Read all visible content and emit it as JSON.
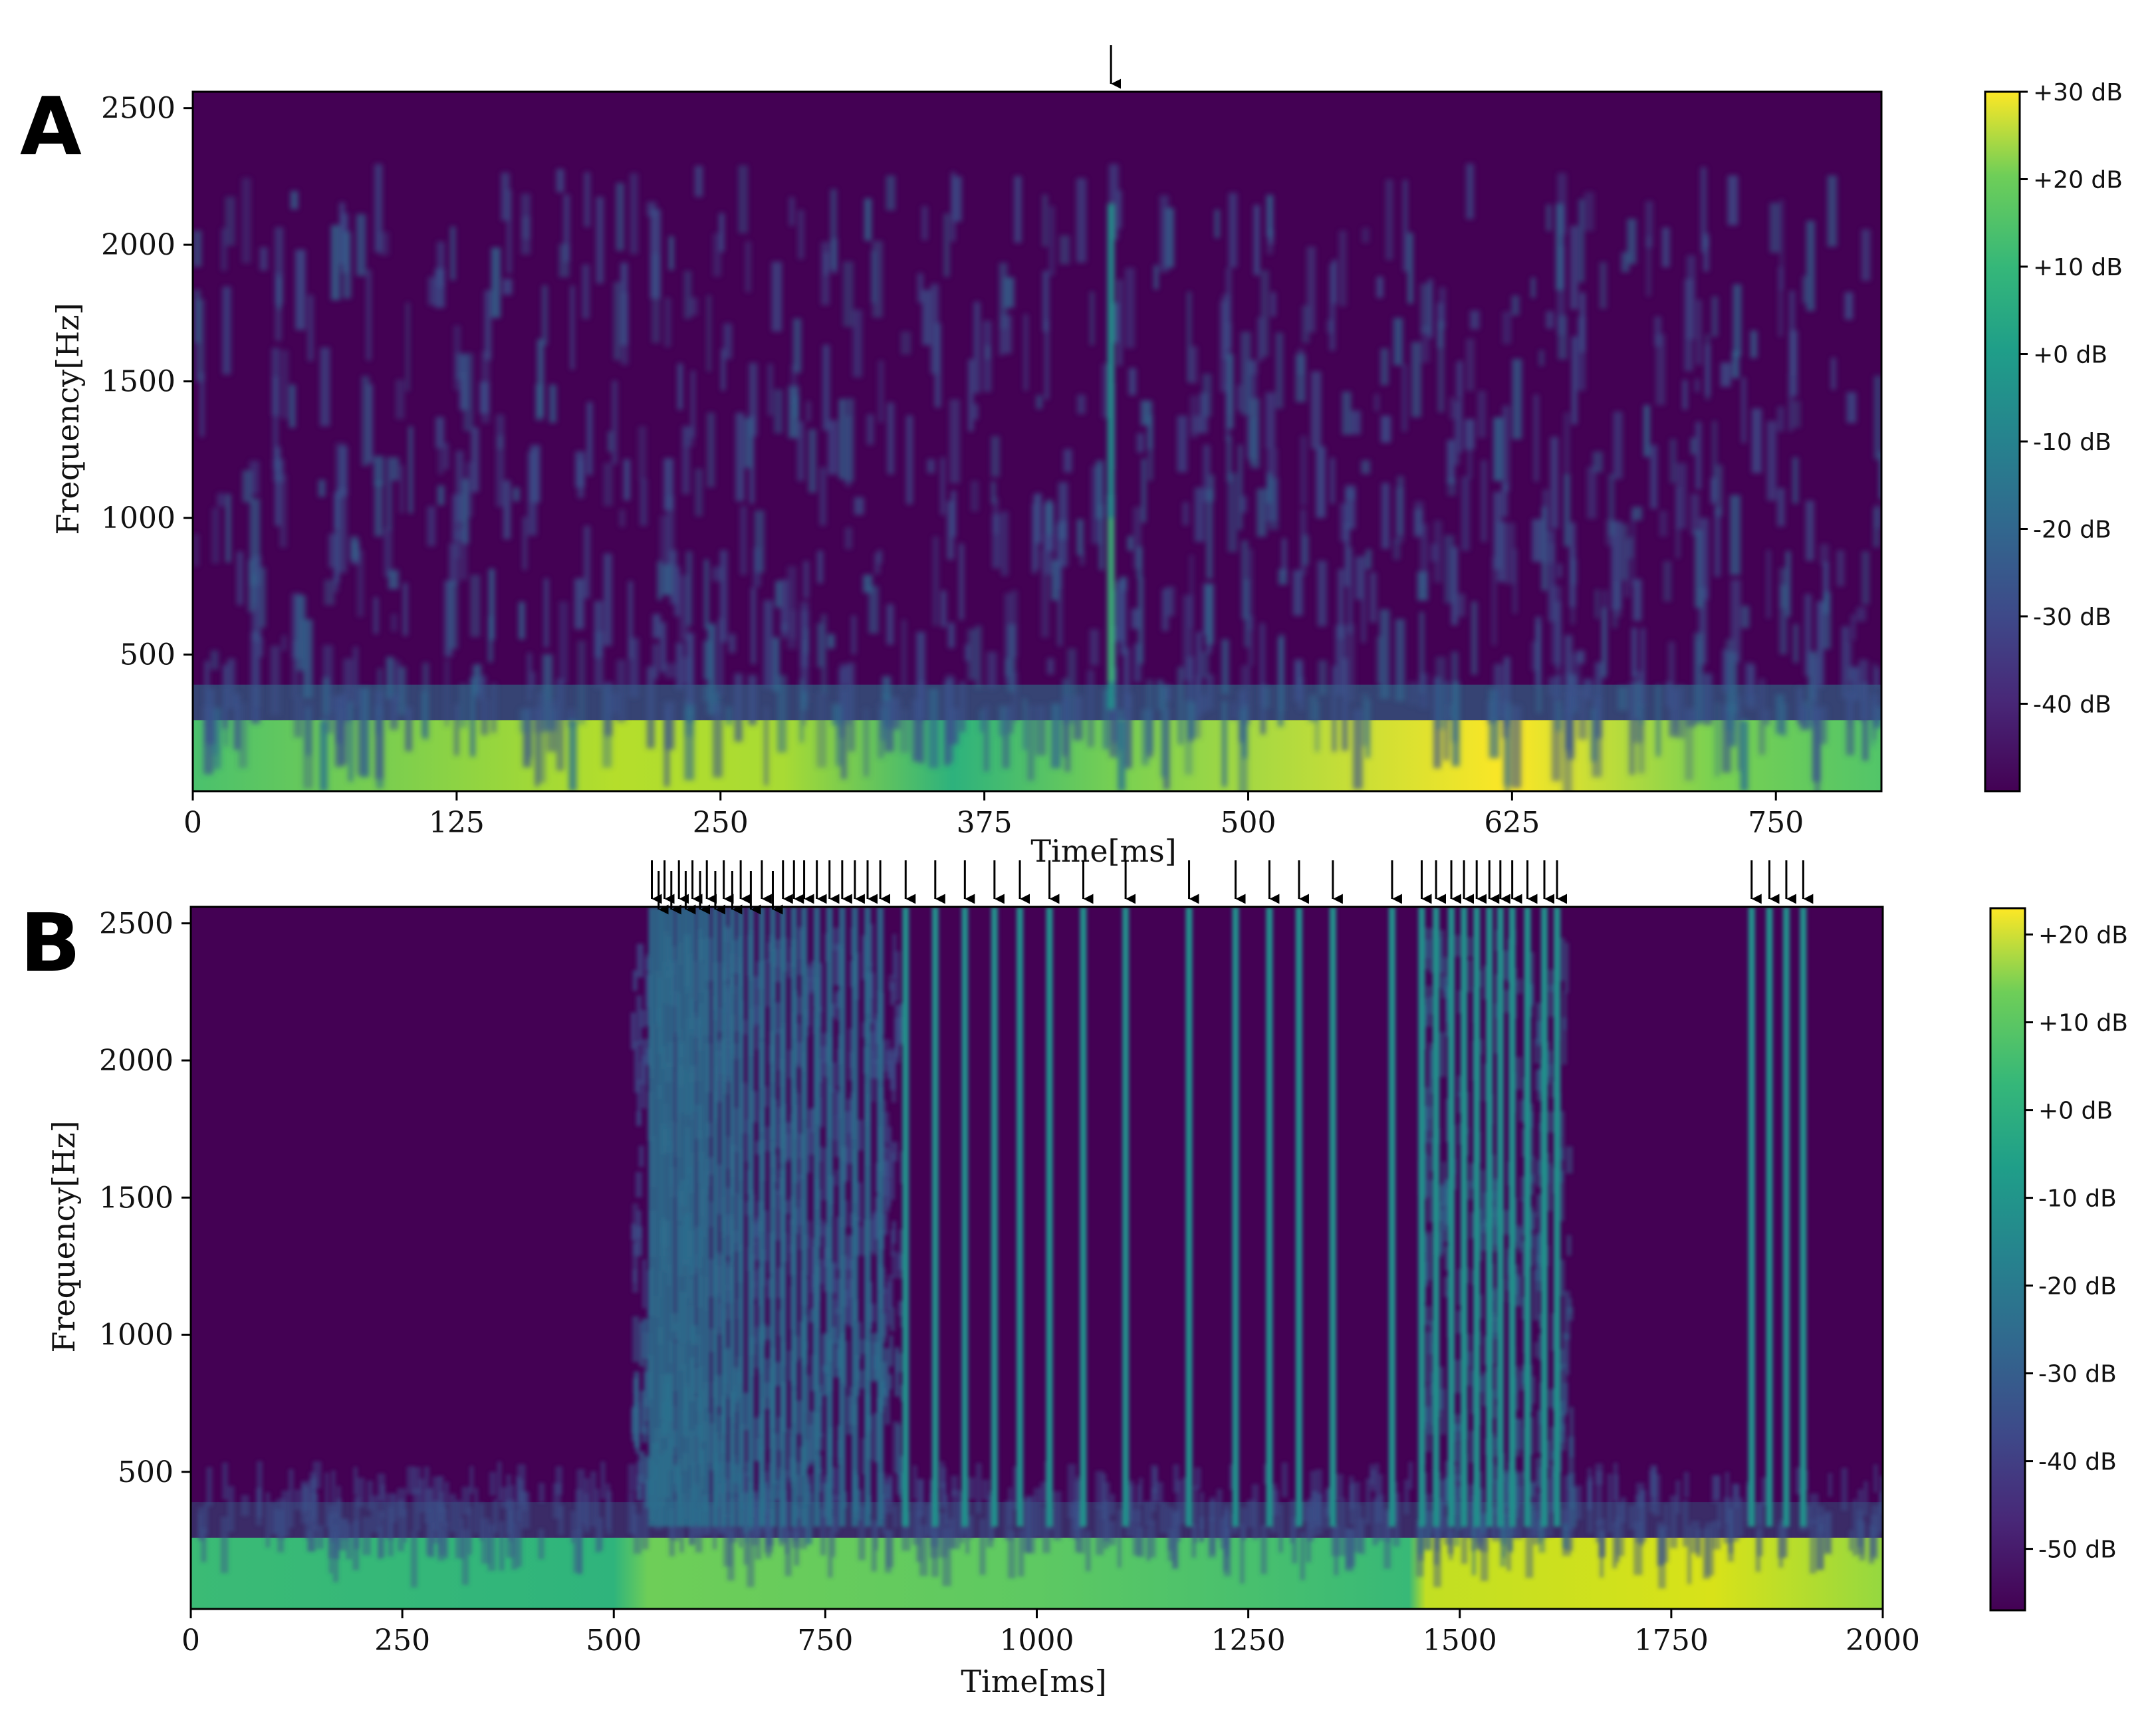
{
  "chart_data": [
    {
      "type": "heatmap",
      "panel_label": "A",
      "xlabel": "Time[ms]",
      "ylabel": "Frequency[Hz]",
      "xlim": [
        0,
        800
      ],
      "ylim": [
        0,
        2500
      ],
      "x_ticks": [
        0,
        125,
        250,
        375,
        500,
        625,
        750
      ],
      "y_ticks": [
        500,
        1000,
        1500,
        2000,
        2500
      ],
      "colorbar": {
        "colormap": "viridis",
        "min": -50,
        "max": 30,
        "ticks": [
          "+30 dB",
          "+20 dB",
          "+10 dB",
          "+0 dB",
          "-10 dB",
          "-20 dB",
          "-30 dB",
          "-40 dB"
        ]
      },
      "markers_ms": [
        435
      ],
      "events_ms": [
        435
      ],
      "band_gaps_ms": [
        62,
        180,
        440,
        735
      ]
    },
    {
      "type": "heatmap",
      "panel_label": "B",
      "xlabel": "Time[ms]",
      "ylabel": "Frequency[Hz]",
      "xlim": [
        0,
        2000
      ],
      "ylim": [
        0,
        2500
      ],
      "x_ticks": [
        0,
        250,
        500,
        750,
        1000,
        1250,
        1500,
        1750,
        2000
      ],
      "y_ticks": [
        500,
        1000,
        1500,
        2000,
        2500
      ],
      "colorbar": {
        "colormap": "viridis",
        "min": -57,
        "max": 23,
        "ticks": [
          "+20 dB",
          "+10 dB",
          "+0 dB",
          "-10 dB",
          "-20 dB",
          "-30 dB",
          "-40 dB",
          "-50 dB"
        ]
      },
      "markers_ms": [
        545,
        553,
        560,
        568,
        577,
        585,
        593,
        602,
        610,
        620,
        630,
        640,
        650,
        662,
        675,
        688,
        700,
        713,
        725,
        740,
        755,
        770,
        785,
        800,
        815,
        845,
        880,
        915,
        950,
        980,
        1015,
        1055,
        1105,
        1180,
        1235,
        1275,
        1310,
        1350,
        1420,
        1455,
        1472,
        1490,
        1505,
        1520,
        1535,
        1548,
        1562,
        1580,
        1600,
        1615,
        1845,
        1866,
        1886,
        1906
      ],
      "events_ms": [
        545,
        553,
        560,
        568,
        577,
        585,
        593,
        602,
        610,
        620,
        630,
        640,
        650,
        662,
        675,
        688,
        700,
        713,
        725,
        740,
        755,
        770,
        785,
        800,
        815,
        845,
        880,
        915,
        950,
        980,
        1015,
        1055,
        1105,
        1180,
        1235,
        1275,
        1310,
        1350,
        1420,
        1455,
        1472,
        1490,
        1505,
        1520,
        1535,
        1548,
        1562,
        1580,
        1600,
        1615,
        1845,
        1866,
        1886,
        1906
      ],
      "band_segments_ms": [
        [
          0,
          500
        ],
        [
          500,
          1450
        ],
        [
          1450,
          1820
        ],
        [
          1820,
          2000
        ]
      ]
    }
  ]
}
